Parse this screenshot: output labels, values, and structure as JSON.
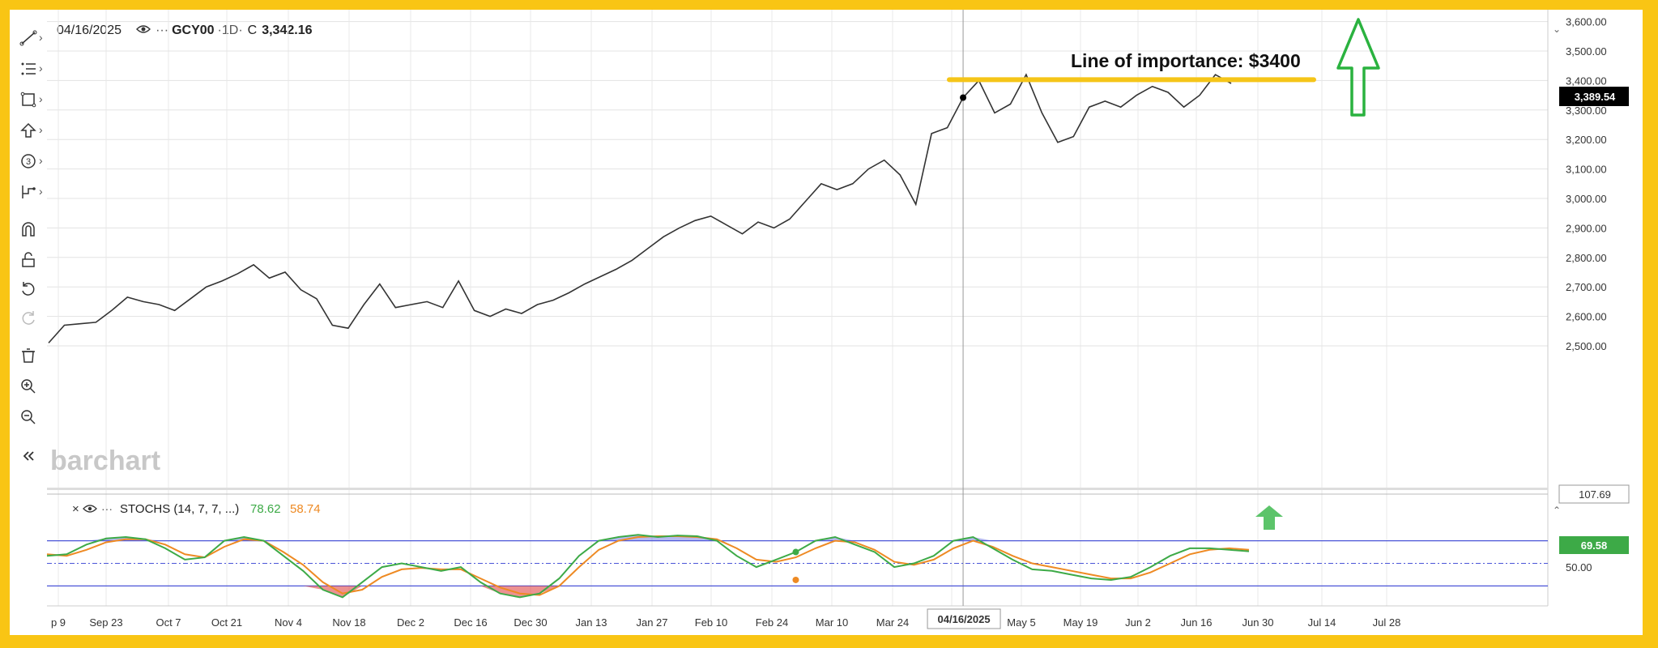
{
  "header": {
    "date": "04/16/2025",
    "symbol": "GCY00",
    "interval": "·1D·",
    "close_label": "C",
    "close_value": "3,342.16"
  },
  "watermark": "barchart",
  "annotation": {
    "text": "Line of importance: $3400",
    "line_value": 3400
  },
  "price_axis": {
    "ticks": [
      "3,600.00",
      "3,500.00",
      "3,400.00",
      "3,300.00",
      "3,200.00",
      "3,100.00",
      "3,000.00",
      "2,900.00",
      "2,800.00",
      "2,700.00",
      "2,600.00",
      "2,500.00"
    ],
    "last_price_label": "3,389.54",
    "crosshair_label": "107.69"
  },
  "x_axis": {
    "ticks": [
      "p 9",
      "Sep 23",
      "Oct 7",
      "Oct 21",
      "Nov 4",
      "Nov 18",
      "Dec 2",
      "Dec 16",
      "Dec 30",
      "Jan 13",
      "Jan 27",
      "Feb 10",
      "Feb 24",
      "Mar 10",
      "Mar 24",
      "Apr",
      "May 5",
      "May 19",
      "Jun 2",
      "Jun 16",
      "Jun 30",
      "Jul 14",
      "Jul 28"
    ],
    "crosshair_label": "04/16/2025"
  },
  "stoch": {
    "label": "STOCHS (14, 7, 7, ...)",
    "k_value": "78.62",
    "d_value": "58.74",
    "k_color": "#3daa47",
    "d_color": "#ee8a23",
    "axis_label": "50.00",
    "value_label": "69.58"
  },
  "colors": {
    "border": "#f9c514",
    "price_line": "#333333",
    "importance_line": "#f5c518",
    "arrow": "#2ab23f",
    "band": "#4a55d8",
    "overbought_fill": "#5b63e0",
    "oversold_fill": "#e04848"
  },
  "chart_data": {
    "type": "line",
    "title": "GCY00",
    "y_range": [
      2470,
      3600
    ],
    "series": [
      {
        "name": "GCY00",
        "x": [
          "Sep 9",
          "Sep 12",
          "Sep 16",
          "Sep 19",
          "Sep 23",
          "Sep 26",
          "Oct 1",
          "Oct 4",
          "Oct 7",
          "Oct 10",
          "Oct 15",
          "Oct 18",
          "Oct 21",
          "Oct 24",
          "Oct 28",
          "Oct 31",
          "Nov 4",
          "Nov 7",
          "Nov 11",
          "Nov 14",
          "Nov 18",
          "Nov 21",
          "Nov 26",
          "Dec 2",
          "Dec 5",
          "Dec 10",
          "Dec 13",
          "Dec 16",
          "Dec 19",
          "Dec 24",
          "Dec 30",
          "Jan 3",
          "Jan 8",
          "Jan 13",
          "Jan 16",
          "Jan 21",
          "Jan 24",
          "Jan 27",
          "Jan 31",
          "Feb 5",
          "Feb 10",
          "Feb 13",
          "Feb 18",
          "Feb 21",
          "Feb 24",
          "Feb 27",
          "Mar 4",
          "Mar 7",
          "Mar 10",
          "Mar 13",
          "Mar 18",
          "Mar 21",
          "Mar 24",
          "Mar 27",
          "Apr 1",
          "Apr 4",
          "Apr 8",
          "Apr 11",
          "Apr 16",
          "Apr 22",
          "Apr 25",
          "Apr 30",
          "May 5",
          "May 8",
          "May 13",
          "May 16",
          "May 19",
          "May 22",
          "May 27",
          "May 30",
          "Jun 2",
          "Jun 5",
          "Jun 10",
          "Jun 13",
          "Jun 16",
          "Jun 19"
        ],
        "values": [
          2510,
          2570,
          2575,
          2580,
          2620,
          2665,
          2650,
          2640,
          2620,
          2660,
          2700,
          2720,
          2745,
          2775,
          2730,
          2750,
          2690,
          2660,
          2570,
          2560,
          2640,
          2710,
          2630,
          2640,
          2650,
          2630,
          2720,
          2620,
          2600,
          2625,
          2610,
          2640,
          2655,
          2680,
          2710,
          2735,
          2760,
          2790,
          2830,
          2870,
          2900,
          2925,
          2940,
          2910,
          2880,
          2920,
          2900,
          2930,
          2990,
          3050,
          3030,
          3050,
          3100,
          3130,
          3080,
          2980,
          3220,
          3240,
          3342,
          3400,
          3290,
          3320,
          3420,
          3290,
          3190,
          3210,
          3310,
          3330,
          3310,
          3350,
          3380,
          3360,
          3310,
          3350,
          3420,
          3390
        ]
      }
    ],
    "stoch_series": [
      {
        "name": "%K",
        "values": [
          60,
          62,
          75,
          83,
          85,
          82,
          70,
          55,
          58,
          80,
          85,
          80,
          60,
          40,
          15,
          5,
          25,
          45,
          50,
          45,
          40,
          45,
          25,
          10,
          5,
          10,
          30,
          60,
          80,
          85,
          88,
          85,
          87,
          86,
          80,
          60,
          45,
          55,
          65,
          80,
          85,
          75,
          65,
          45,
          50,
          60,
          80,
          85,
          70,
          55,
          42,
          40,
          35,
          30,
          28,
          32,
          45,
          60,
          70,
          70,
          68,
          66
        ]
      },
      {
        "name": "%D",
        "values": [
          62,
          60,
          68,
          78,
          82,
          82,
          75,
          62,
          58,
          72,
          82,
          80,
          65,
          48,
          25,
          10,
          15,
          32,
          42,
          44,
          42,
          42,
          30,
          18,
          10,
          8,
          20,
          45,
          68,
          80,
          85,
          86,
          86,
          85,
          82,
          70,
          55,
          52,
          58,
          70,
          80,
          78,
          68,
          52,
          48,
          55,
          70,
          80,
          72,
          60,
          50,
          45,
          40,
          35,
          30,
          30,
          38,
          50,
          62,
          68,
          70,
          68
        ]
      }
    ]
  }
}
